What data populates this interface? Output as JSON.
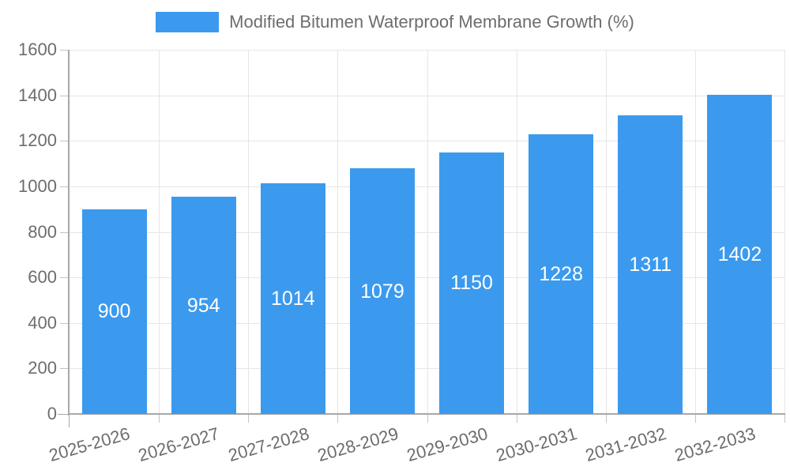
{
  "chart_data": {
    "type": "bar",
    "title": "",
    "legend": {
      "position": "top",
      "label": "Modified Bitumen Waterproof Membrane Growth (%)"
    },
    "categories": [
      "2025-2026",
      "2026-2027",
      "2027-2028",
      "2028-2029",
      "2029-2030",
      "2030-2031",
      "2031-2032",
      "2032-2033"
    ],
    "values": [
      900,
      954,
      1014,
      1079,
      1150,
      1228,
      1311,
      1402
    ],
    "bar_value_labels": [
      "900",
      "954",
      "1014",
      "1079",
      "1150",
      "1228",
      "1311",
      "1402"
    ],
    "xlabel": "",
    "ylabel": "",
    "ylim": [
      0,
      1600
    ],
    "ytick_step": 200,
    "yticks": [
      0,
      200,
      400,
      600,
      800,
      1000,
      1200,
      1400,
      1600
    ],
    "grid": true,
    "x_tick_label_rotation_deg": -16,
    "colors": {
      "bar": "#3b9aee",
      "bar_label_text": "#ffffff",
      "axis_text": "#6d6d6d",
      "legend_text": "#6d6d6d",
      "gridline": "#e6e6e6",
      "axis_line": "#a8a8a8",
      "tick_mark": "#c4c4c4"
    }
  }
}
